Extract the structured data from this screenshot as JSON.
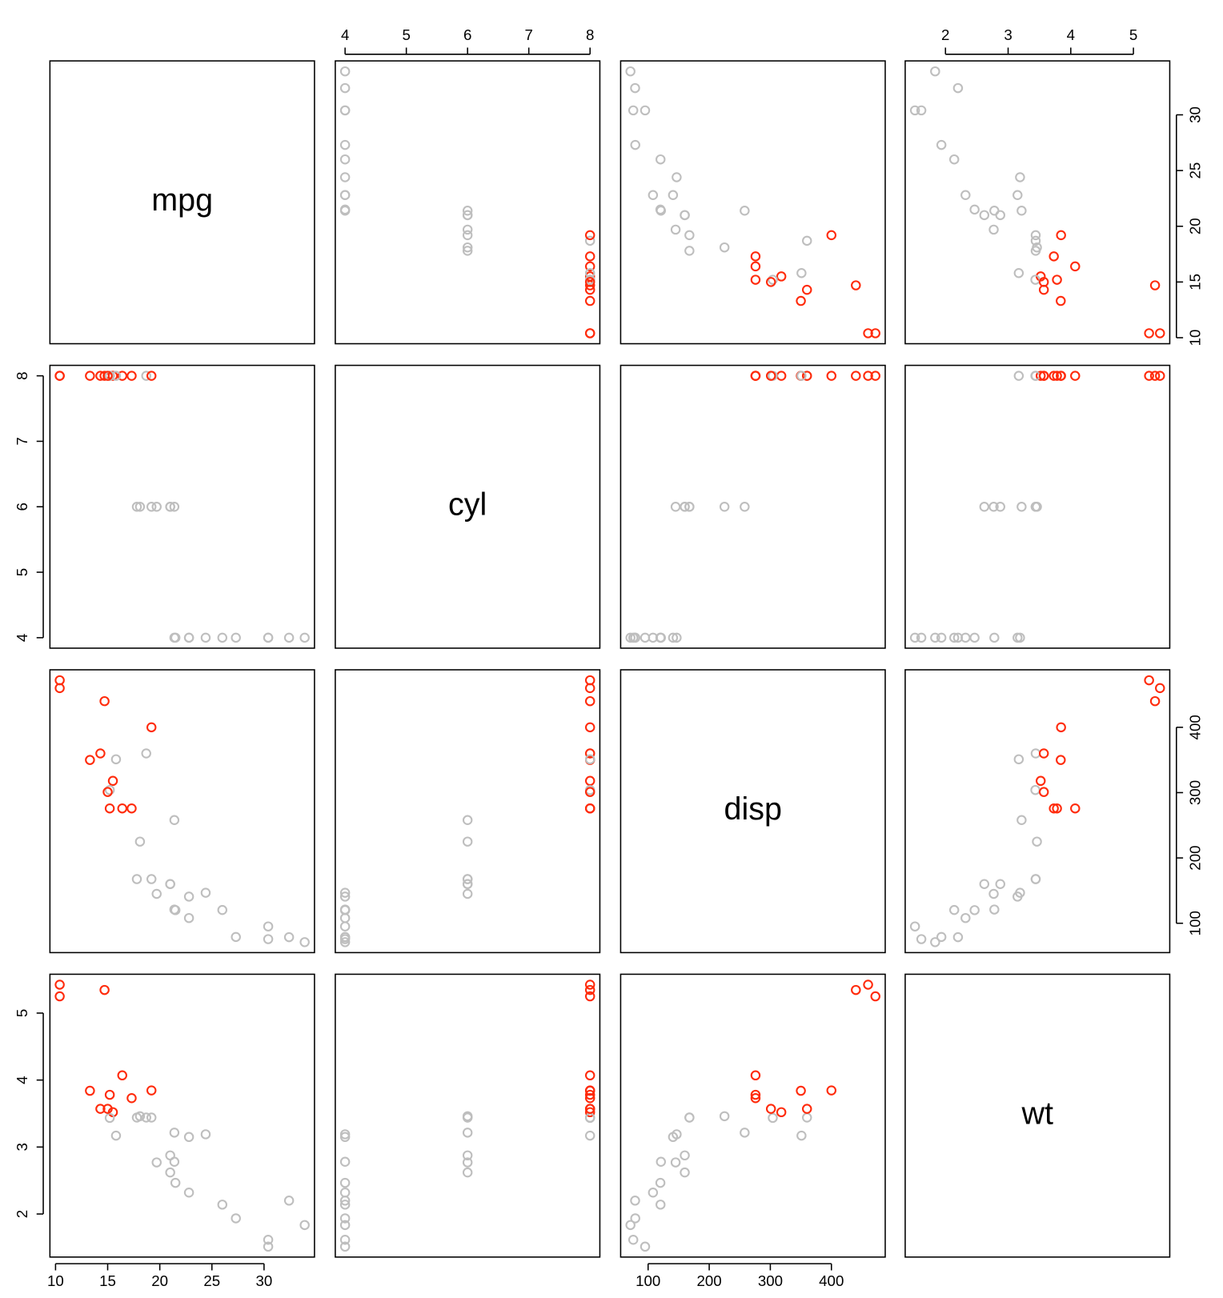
{
  "chart_data": {
    "type": "scatter-matrix",
    "variables": [
      {
        "name": "mpg",
        "lim": [
          9.46,
          34.84
        ],
        "ticks": [
          10,
          15,
          20,
          25,
          30
        ],
        "values": [
          21.0,
          21.0,
          22.8,
          21.4,
          18.7,
          18.1,
          14.3,
          24.4,
          22.8,
          19.2,
          17.8,
          16.4,
          17.3,
          15.2,
          10.4,
          10.4,
          14.7,
          32.4,
          30.4,
          33.9,
          21.5,
          15.5,
          15.2,
          13.3,
          19.2,
          27.3,
          26.0,
          30.4,
          15.8,
          19.7,
          15.0,
          21.4
        ]
      },
      {
        "name": "cyl",
        "lim": [
          3.84,
          8.16
        ],
        "ticks": [
          4,
          5,
          6,
          7,
          8
        ],
        "values": [
          6,
          6,
          4,
          6,
          8,
          6,
          8,
          4,
          4,
          6,
          6,
          8,
          8,
          8,
          8,
          8,
          8,
          4,
          4,
          4,
          4,
          8,
          8,
          8,
          8,
          4,
          4,
          4,
          8,
          6,
          8,
          4
        ]
      },
      {
        "name": "disp",
        "lim": [
          55.06,
          488.04
        ],
        "ticks": [
          100,
          200,
          300,
          400
        ],
        "values": [
          160,
          160,
          108,
          258,
          360,
          225,
          360,
          146.7,
          140.8,
          167.6,
          167.6,
          275.8,
          275.8,
          275.8,
          472,
          460,
          440,
          78.7,
          75.7,
          71.1,
          120.1,
          318,
          304,
          350,
          400,
          79,
          120.3,
          95.1,
          351,
          145,
          301,
          121
        ]
      },
      {
        "name": "wt",
        "lim": [
          1.357,
          5.58
        ],
        "ticks": [
          2,
          3,
          4,
          5
        ],
        "values": [
          2.62,
          2.875,
          2.32,
          3.215,
          3.44,
          3.46,
          3.57,
          3.19,
          3.15,
          3.44,
          3.44,
          4.07,
          3.73,
          3.78,
          5.25,
          5.424,
          5.345,
          2.2,
          1.615,
          1.835,
          2.465,
          3.52,
          3.435,
          3.84,
          3.845,
          1.935,
          2.14,
          1.513,
          3.17,
          2.77,
          3.57,
          2.78
        ]
      }
    ],
    "point_colors": [
      "#bebebe",
      "#bebebe",
      "#bebebe",
      "#bebebe",
      "#bebebe",
      "#bebebe",
      "#ff2a0a",
      "#bebebe",
      "#bebebe",
      "#bebebe",
      "#bebebe",
      "#ff2a0a",
      "#ff2a0a",
      "#ff2a0a",
      "#ff2a0a",
      "#ff2a0a",
      "#ff2a0a",
      "#bebebe",
      "#bebebe",
      "#bebebe",
      "#bebebe",
      "#ff2a0a",
      "#bebebe",
      "#ff2a0a",
      "#ff2a0a",
      "#bebebe",
      "#bebebe",
      "#bebebe",
      "#bebebe",
      "#bebebe",
      "#ff2a0a",
      "#bebebe"
    ]
  }
}
